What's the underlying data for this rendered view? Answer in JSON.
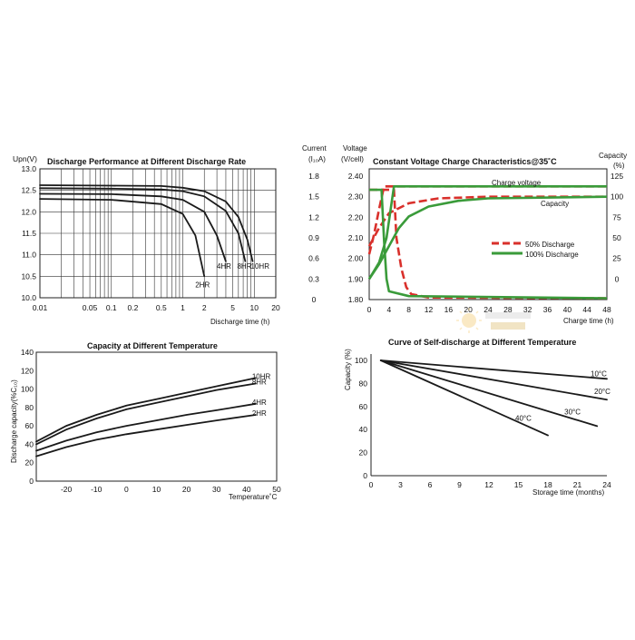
{
  "chart_data": [
    {
      "type": "line",
      "id": "discharge",
      "title": "Discharge Performance at Different Discharge Rate",
      "ylabel": "Upn(V)",
      "xlabel": "Discharge  time (h)",
      "xscale": "log",
      "xlim": [
        0.01,
        20
      ],
      "ylim": [
        10.0,
        13.0
      ],
      "xticks": [
        0.01,
        0.05,
        0.1,
        0.2,
        0.5,
        1,
        2,
        5,
        10,
        20
      ],
      "xtick_labels": [
        "0.01",
        "0.05",
        "0.1",
        "0.2",
        "0.5",
        "1",
        "2",
        "5",
        "10",
        "20"
      ],
      "yticks": [
        10.0,
        10.5,
        11.0,
        11.5,
        12.0,
        12.5,
        13.0
      ],
      "ytick_labels": [
        "10.0",
        "10.5",
        "11.0",
        "11.5",
        "12.0",
        "12.5",
        "13.0"
      ],
      "grid_x": [
        0.01,
        0.02,
        0.03,
        0.04,
        0.05,
        0.06,
        0.07,
        0.08,
        0.09,
        0.1,
        0.2,
        0.3,
        0.4,
        0.5,
        0.6,
        0.7,
        0.8,
        0.9,
        1,
        2,
        3,
        4,
        5,
        6,
        7,
        8,
        9,
        10,
        20
      ],
      "grid": true,
      "series": [
        {
          "name": "2HR",
          "points": [
            [
              0.01,
              12.3
            ],
            [
              0.1,
              12.28
            ],
            [
              0.5,
              12.18
            ],
            [
              1.0,
              11.95
            ],
            [
              1.5,
              11.45
            ],
            [
              2.0,
              10.5
            ]
          ]
        },
        {
          "name": "4HR",
          "points": [
            [
              0.01,
              12.42
            ],
            [
              0.1,
              12.41
            ],
            [
              0.5,
              12.36
            ],
            [
              1.0,
              12.28
            ],
            [
              2.0,
              12.0
            ],
            [
              3.0,
              11.45
            ],
            [
              4.0,
              10.85
            ]
          ]
        },
        {
          "name": "8HR",
          "points": [
            [
              0.01,
              12.55
            ],
            [
              0.1,
              12.54
            ],
            [
              0.5,
              12.52
            ],
            [
              1.0,
              12.48
            ],
            [
              2.0,
              12.36
            ],
            [
              4.0,
              12.02
            ],
            [
              6.0,
              11.5
            ],
            [
              7.5,
              10.85
            ]
          ]
        },
        {
          "name": "10HR",
          "points": [
            [
              0.01,
              12.62
            ],
            [
              0.1,
              12.61
            ],
            [
              0.5,
              12.6
            ],
            [
              1.0,
              12.56
            ],
            [
              2.0,
              12.48
            ],
            [
              4.0,
              12.24
            ],
            [
              6.0,
              11.88
            ],
            [
              8.0,
              11.35
            ],
            [
              9.5,
              10.85
            ]
          ]
        }
      ]
    },
    {
      "type": "line",
      "id": "charge",
      "title": "Constant Voltage Charge Characteristics@35˚C",
      "xlabel": "Charge time (h)",
      "xlim": [
        0,
        48
      ],
      "xticks": [
        0,
        4,
        8,
        12,
        16,
        20,
        24,
        28,
        32,
        36,
        40,
        44,
        48
      ],
      "ylabel_current": [
        "Current",
        "(I₁₀A)"
      ],
      "ylabel_voltage": [
        "Voltage",
        "(V/cell)"
      ],
      "ylabel_capacity": [
        "Capacity",
        "(%)"
      ],
      "current_ticks": [
        "0",
        "0.3",
        "0.6",
        "0.9",
        "1.2",
        "1.5",
        "1.8"
      ],
      "voltage_ticks": [
        "1.80",
        "1.90",
        "2.00",
        "2.10",
        "2.20",
        "2.30",
        "2.40"
      ],
      "capacity_ticks": [
        "0",
        "25",
        "50",
        "75",
        "100",
        "125"
      ],
      "ylim_voltage": [
        1.8,
        2.4
      ],
      "ylim_current": [
        0,
        1.8
      ],
      "ylim_capacity": [
        -25,
        125
      ],
      "series": [
        {
          "name": "50% Discharge",
          "color": "#d9302b",
          "dash": true,
          "voltage": [
            [
              0,
              2.02
            ],
            [
              1,
              2.12
            ],
            [
              2,
              2.24
            ],
            [
              3,
              2.35
            ],
            [
              4,
              2.35
            ],
            [
              48,
              2.35
            ]
          ],
          "current": [
            [
              0,
              1.6
            ],
            [
              5,
              1.6
            ],
            [
              5.5,
              0.9
            ],
            [
              6.5,
              0.45
            ],
            [
              7.5,
              0.18
            ],
            [
              8.5,
              0.08
            ],
            [
              12,
              0.03
            ],
            [
              48,
              0.02
            ]
          ],
          "capacity": [
            [
              0,
              40
            ],
            [
              2,
              62
            ],
            [
              4,
              80
            ],
            [
              8,
              92
            ],
            [
              14,
              98
            ],
            [
              24,
              100
            ],
            [
              48,
              100
            ]
          ]
        },
        {
          "name": "100% Discharge",
          "color": "#3a9b3a",
          "dash": false,
          "voltage": [
            [
              0,
              1.9
            ],
            [
              2,
              1.98
            ],
            [
              3.5,
              2.1
            ],
            [
              5,
              2.35
            ],
            [
              48,
              2.35
            ]
          ],
          "current": [
            [
              0,
              1.6
            ],
            [
              2.5,
              1.6
            ],
            [
              3,
              0.85
            ],
            [
              3.5,
              0.3
            ],
            [
              4,
              0.12
            ],
            [
              8,
              0.05
            ],
            [
              48,
              0.02
            ]
          ],
          "capacity": [
            [
              0,
              0
            ],
            [
              2,
              18
            ],
            [
              4,
              40
            ],
            [
              6,
              62
            ],
            [
              8,
              76
            ],
            [
              12,
              88
            ],
            [
              18,
              95
            ],
            [
              24,
              98
            ],
            [
              48,
              100
            ]
          ]
        }
      ],
      "annotations": [
        "Charge voltage",
        "Capacity"
      ],
      "legend": "center-right"
    },
    {
      "type": "line",
      "id": "temperature",
      "title": "Capacity at Different Temperature",
      "ylabel": "Discharge capacity(%C₁₀)",
      "xlabel": "Temperature˚C",
      "xlim": [
        -30,
        50
      ],
      "ylim": [
        0,
        140
      ],
      "xticks": [
        -20,
        -10,
        0,
        10,
        20,
        30,
        40,
        50
      ],
      "yticks": [
        0,
        20,
        40,
        60,
        80,
        100,
        120,
        140
      ],
      "series": [
        {
          "name": "10HR",
          "points": [
            [
              -30,
              43
            ],
            [
              -20,
              60
            ],
            [
              -10,
              72
            ],
            [
              0,
              82
            ],
            [
              10,
              89
            ],
            [
              20,
              96
            ],
            [
              30,
              103
            ],
            [
              43,
              112
            ]
          ]
        },
        {
          "name": "8HR",
          "points": [
            [
              -30,
              40
            ],
            [
              -20,
              56
            ],
            [
              -10,
              68
            ],
            [
              0,
              78
            ],
            [
              10,
              85
            ],
            [
              20,
              92
            ],
            [
              30,
              99
            ],
            [
              43,
              106
            ]
          ]
        },
        {
          "name": "4HR",
          "points": [
            [
              -30,
              33
            ],
            [
              -20,
              44
            ],
            [
              -10,
              53
            ],
            [
              0,
              60
            ],
            [
              10,
              66
            ],
            [
              20,
              72
            ],
            [
              30,
              77
            ],
            [
              43,
              84
            ]
          ]
        },
        {
          "name": "2HR",
          "points": [
            [
              -30,
              27
            ],
            [
              -20,
              37
            ],
            [
              -10,
              45
            ],
            [
              0,
              51
            ],
            [
              10,
              56
            ],
            [
              20,
              61
            ],
            [
              30,
              66
            ],
            [
              43,
              72
            ]
          ]
        }
      ]
    },
    {
      "type": "line",
      "id": "selfdischarge",
      "title": "Curve of Self-discharge at Different Temperature",
      "ylabel": "Capacity (%)",
      "xlabel": "Storage time (months)",
      "xlim": [
        0,
        24
      ],
      "ylim": [
        0,
        100
      ],
      "xticks": [
        0,
        3,
        6,
        9,
        12,
        15,
        18,
        21,
        24
      ],
      "yticks": [
        0,
        20,
        40,
        60,
        80,
        100
      ],
      "series": [
        {
          "name": "10°C",
          "points": [
            [
              1,
              100
            ],
            [
              24,
              84
            ]
          ]
        },
        {
          "name": "20°C",
          "points": [
            [
              1,
              100
            ],
            [
              24,
              66
            ]
          ]
        },
        {
          "name": "30°C",
          "points": [
            [
              1,
              100
            ],
            [
              23,
              43
            ]
          ]
        },
        {
          "name": "40°C",
          "points": [
            [
              1,
              100
            ],
            [
              18,
              35
            ]
          ]
        }
      ]
    }
  ]
}
